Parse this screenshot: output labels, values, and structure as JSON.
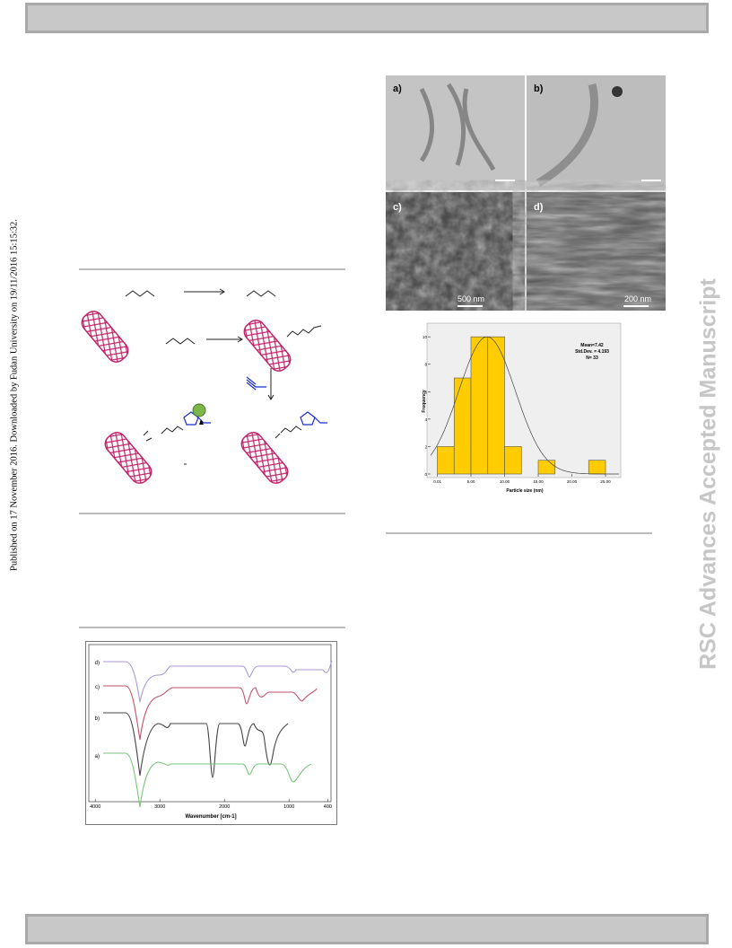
{
  "sidebar": {
    "left": "Published on 17 November 2016. Downloaded by Fudan University on 19/11/2016 15:15:32.",
    "right": "RSC Advances Accepted Manuscript"
  },
  "figures": {
    "tem": {
      "panels": [
        "a)",
        "b)",
        "c)",
        "d)"
      ],
      "scale_bars": [
        "500 nm",
        "200 nm"
      ]
    },
    "histogram": {
      "ylabel": "Frequency",
      "xlabel": "Particle size (nm)",
      "stats": [
        "Mean=7.42",
        "Std.Dev. = 4.193",
        "N= 33"
      ],
      "bins": [
        0,
        2.5,
        5,
        7.5,
        10,
        12.5,
        15,
        17.5,
        20,
        22.5,
        25
      ],
      "counts": [
        2,
        7,
        10,
        10,
        2,
        0,
        1,
        0,
        0,
        1
      ],
      "color": "#ffcc00",
      "xlim": [
        -1,
        27
      ],
      "ylim": [
        0,
        10.6
      ],
      "xticks": [
        {
          "value": 0.01,
          "label": "0.01"
        },
        {
          "value": 5,
          "label": "5.00"
        },
        {
          "value": 10,
          "label": "10.00"
        },
        {
          "value": 15,
          "label": "15.00"
        },
        {
          "value": 20,
          "label": "20.00"
        },
        {
          "value": 25,
          "label": "25.00"
        }
      ],
      "yticks": [
        0,
        2,
        4,
        6,
        8,
        10
      ]
    },
    "ftir": {
      "curve_labels": [
        "d)",
        "c)",
        "b)",
        "a)"
      ],
      "xlabel": "Wavenumber [cm-1]",
      "xlim": [
        4100,
        350
      ],
      "xticks": [
        4000,
        3000,
        2000,
        1000,
        400
      ]
    }
  }
}
